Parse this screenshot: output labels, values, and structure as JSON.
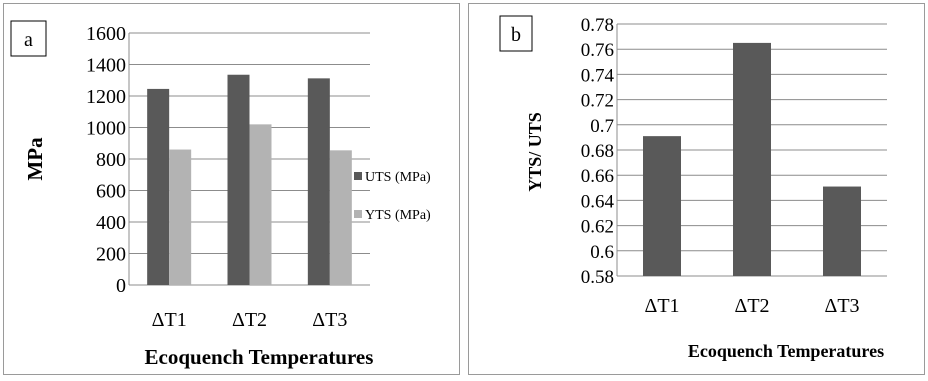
{
  "chart_data": [
    {
      "panel": "a",
      "type": "bar",
      "categories": [
        "ΔT1",
        "ΔT2",
        "ΔT3"
      ],
      "series": [
        {
          "name": "UTS (MPa)",
          "values": [
            1245,
            1335,
            1312
          ],
          "color": "#595959"
        },
        {
          "name": "YTS (MPa)",
          "values": [
            860,
            1020,
            855
          ],
          "color": "#b3b3b3"
        }
      ],
      "xlabel": "Ecoquench Temperatures",
      "ylabel": "MPa",
      "ylim": [
        0,
        1600
      ],
      "yticks": [
        "0",
        "200",
        "400",
        "600",
        "800",
        "1000",
        "1200",
        "1400",
        "1600"
      ],
      "grid": true,
      "legend": "right"
    },
    {
      "panel": "b",
      "type": "bar",
      "categories": [
        "ΔT1",
        "ΔT2",
        "ΔT3"
      ],
      "series": [
        {
          "values": [
            0.691,
            0.765,
            0.651
          ],
          "color": "#595959"
        }
      ],
      "xlabel": "Ecoquench Temperatures",
      "ylabel": "YTS/ UTS",
      "ylim": [
        0.58,
        0.78
      ],
      "yticks": [
        "0.58",
        "0.6",
        "0.62",
        "0.64",
        "0.66",
        "0.68",
        "0.7",
        "0.72",
        "0.74",
        "0.76",
        "0.78"
      ],
      "grid": true,
      "legend": "none"
    }
  ]
}
